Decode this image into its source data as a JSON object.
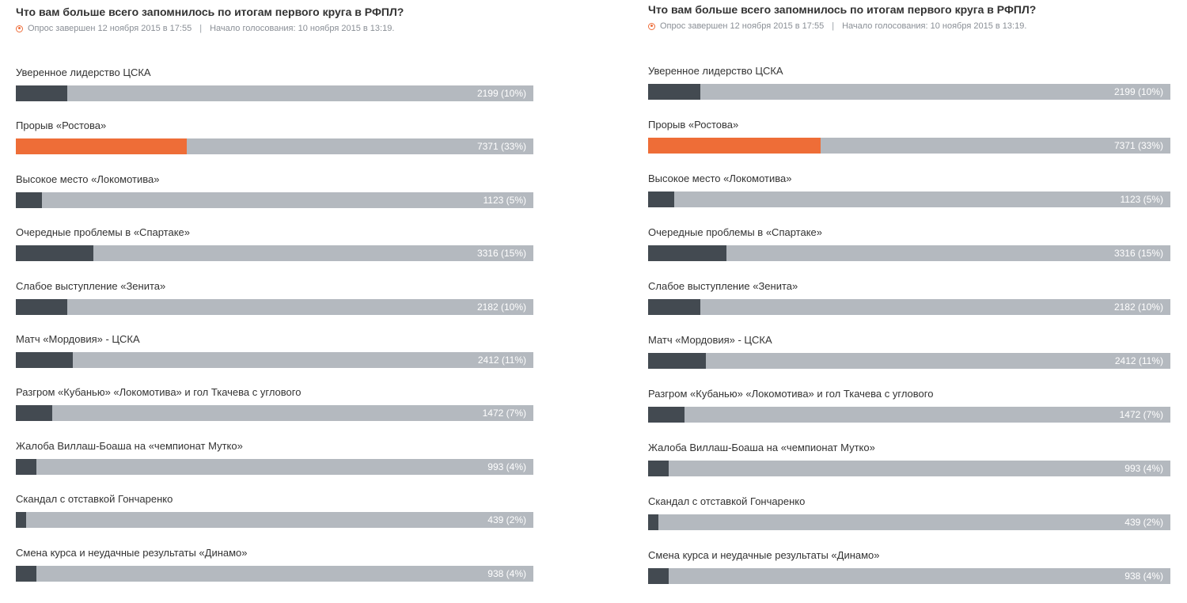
{
  "colors": {
    "bar_track": "#b4b9bf",
    "bar_fill": "#434a51",
    "bar_fill_leader": "#ee6d37",
    "status_dot": "#ee6d3a"
  },
  "polls": [
    {
      "title": "Что вам больше всего запомнилось по итогам первого круга в РФПЛ?",
      "status": "Опрос завершен 12 ноября 2015 в 17:55",
      "separator": "|",
      "started": "Начало голосования: 10 ноября 2015 в 13:19.",
      "options": [
        {
          "label": "Уверенное лидерство ЦСКА",
          "result": "2199 (10%)",
          "percent": 10
        },
        {
          "label": "Прорыв «Ростова»",
          "result": "7371 (33%)",
          "percent": 33,
          "leader": true
        },
        {
          "label": "Высокое место «Локомотива»",
          "result": "1123 (5%)",
          "percent": 5
        },
        {
          "label": "Очередные проблемы в «Спартаке»",
          "result": "3316 (15%)",
          "percent": 15
        },
        {
          "label": "Слабое выступление «Зенита»",
          "result": "2182 (10%)",
          "percent": 10
        },
        {
          "label": "Матч «Мордовия» - ЦСКА",
          "result": "2412 (11%)",
          "percent": 11
        },
        {
          "label": "Разгром «Кубанью» «Локомотива» и гол Ткачева с углового",
          "result": "1472 (7%)",
          "percent": 7
        },
        {
          "label": "Жалоба Виллаш-Боаша на «чемпионат Мутко»",
          "result": "993 (4%)",
          "percent": 4
        },
        {
          "label": "Скандал с отставкой Гончаренко",
          "result": "439 (2%)",
          "percent": 2
        },
        {
          "label": "Смена курса и неудачные результаты «Динамо»",
          "result": "938 (4%)",
          "percent": 4
        }
      ]
    },
    {
      "title": "Что вам больше всего запомнилось по итогам первого круга в РФПЛ?",
      "status": "Опрос завершен 12 ноября 2015 в 17:55",
      "separator": "|",
      "started": "Начало голосования: 10 ноября 2015 в 13:19.",
      "options": [
        {
          "label": "Уверенное лидерство ЦСКА",
          "result": "2199 (10%)",
          "percent": 10
        },
        {
          "label": "Прорыв «Ростова»",
          "result": "7371 (33%)",
          "percent": 33,
          "leader": true
        },
        {
          "label": "Высокое место «Локомотива»",
          "result": "1123 (5%)",
          "percent": 5
        },
        {
          "label": "Очередные проблемы в «Спартаке»",
          "result": "3316 (15%)",
          "percent": 15
        },
        {
          "label": "Слабое выступление «Зенита»",
          "result": "2182 (10%)",
          "percent": 10
        },
        {
          "label": "Матч «Мордовия» - ЦСКА",
          "result": "2412 (11%)",
          "percent": 11
        },
        {
          "label": "Разгром «Кубанью» «Локомотива» и гол Ткачева с углового",
          "result": "1472 (7%)",
          "percent": 7
        },
        {
          "label": "Жалоба Виллаш-Боаша на «чемпионат Мутко»",
          "result": "993 (4%)",
          "percent": 4
        },
        {
          "label": "Скандал с отставкой Гончаренко",
          "result": "439 (2%)",
          "percent": 2
        },
        {
          "label": "Смена курса и неудачные результаты «Динамо»",
          "result": "938 (4%)",
          "percent": 4
        }
      ]
    }
  ]
}
